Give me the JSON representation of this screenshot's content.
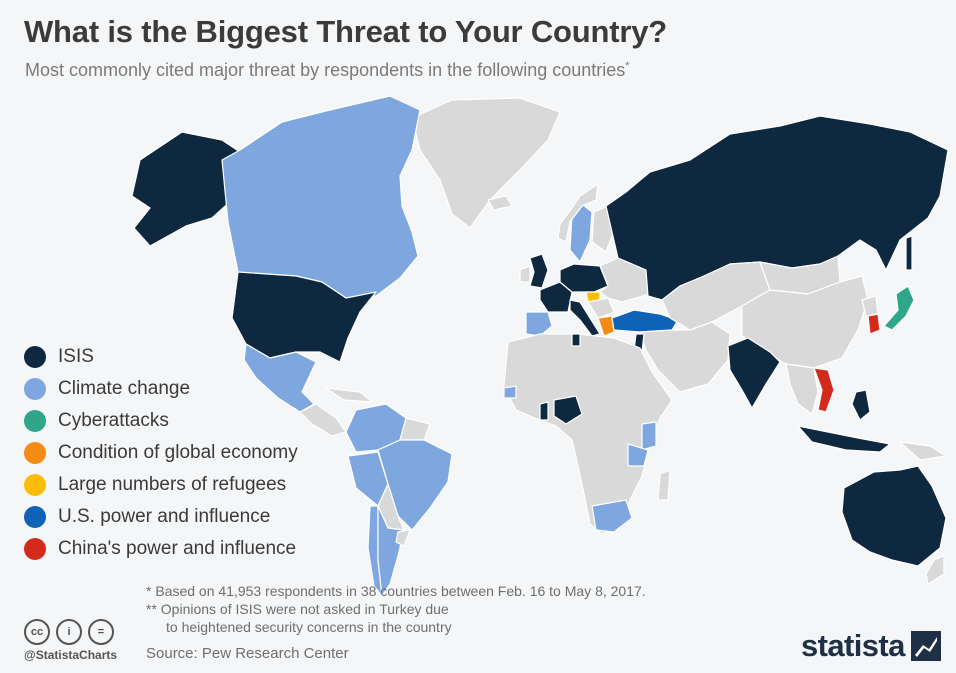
{
  "title": "What is the Biggest Threat to Your Country?",
  "subtitle": "Most commonly cited major threat by respondents in the following countries",
  "subtitle_mark": "*",
  "legend": [
    {
      "label": "ISIS",
      "color": "#0e2840"
    },
    {
      "label": "Climate change",
      "color": "#7ea7e0"
    },
    {
      "label": "Cyberattacks",
      "color": "#2fa589"
    },
    {
      "label": "Condition of global economy",
      "color": "#f58a14"
    },
    {
      "label": "Large numbers of refugees",
      "color": "#fbbd0a"
    },
    {
      "label": "U.S. power and influence",
      "color": "#0e63b6"
    },
    {
      "label": "China's power and influence",
      "color": "#d42a1c"
    }
  ],
  "no_data_color": "#d9d9d9",
  "footnotes": {
    "line1": "*   Based on 41,953 respondents in 38 countries between Feb. 16 to May 8, 2017.",
    "line2": "** Opinions of ISIS were not asked in Turkey due",
    "line3": "to heightened security concerns in the country"
  },
  "source": "Source: Pew Research Center",
  "handle": "@StatistaCharts",
  "cc_icons": [
    {
      "name": "cc-icon",
      "glyph": "cc"
    },
    {
      "name": "by-icon",
      "glyph": "i"
    },
    {
      "name": "nd-icon",
      "glyph": "="
    }
  ],
  "brand": "statista"
}
